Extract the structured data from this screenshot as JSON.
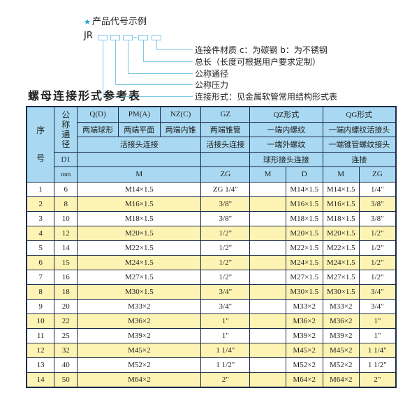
{
  "legend": {
    "title": "产品代号示例",
    "star_icon": "star-icon",
    "code_prefix": "JR",
    "items": [
      "连接件材质    c：为碳钢   b：为不锈钢",
      "总长（长度可根据用户要求定制）",
      "公称通径",
      "公称压力",
      "连接形式：见金属软管常用结构形式表"
    ]
  },
  "table_title": "螺母连接形式参考表",
  "colors": {
    "header_bg": "#a9d9f2",
    "stripe_bg": "#fdf4b4",
    "border": "#1a2a4a",
    "accent": "#1aa0d8"
  },
  "header": {
    "seq": "序号",
    "nominal": "公称通径",
    "d1": "D1",
    "mm": "mm",
    "q": "Q(D)",
    "pm": "PM(A)",
    "nz": "NZ(C)",
    "gz": "GZ",
    "qz": "QZ形式",
    "qg": "QG形式",
    "q_desc": "两端球形",
    "pm_desc": "两端平面",
    "nz_desc": "两端内锥",
    "gz_desc": "两端锥管",
    "qz_desc1": "一端内螺纹",
    "qg_desc1": "一端内螺纹活接头",
    "union": "活接头连接",
    "gz_union": "活接头连接",
    "qz_desc2": "一端外螺纹",
    "qg_desc2": "一端锥管螺纹接头",
    "qz_desc3": "球形接头连接",
    "qg_desc3": "连接",
    "m": "M",
    "zg": "ZG",
    "qz_m": "M",
    "qz_d": "D",
    "qg_m": "M",
    "qg_zg": "ZG"
  },
  "rows": [
    {
      "no": "1",
      "dn": "6",
      "m": "M14×1.5",
      "zg": "ZG 1/4\"",
      "qz_m": "",
      "qz_d": "M14×1.5",
      "qg_m": "M14×1.5",
      "qg_zg": "1/4\""
    },
    {
      "no": "2",
      "dn": "8",
      "m": "M16×1.5",
      "zg": "3/8\"",
      "qz_m": "",
      "qz_d": "M16×1.5",
      "qg_m": "M16×1.5",
      "qg_zg": "3/8\""
    },
    {
      "no": "3",
      "dn": "10",
      "m": "M18×1.5",
      "zg": "3/8\"",
      "qz_m": "",
      "qz_d": "M18×1.5",
      "qg_m": "M18×1.5",
      "qg_zg": "3/8\""
    },
    {
      "no": "4",
      "dn": "12",
      "m": "M20×1.5",
      "zg": "1/2\"",
      "qz_m": "",
      "qz_d": "M20×1.5",
      "qg_m": "M20×1.5",
      "qg_zg": "1/2\""
    },
    {
      "no": "5",
      "dn": "14",
      "m": "M22×1.5",
      "zg": "1/2\"",
      "qz_m": "",
      "qz_d": "M22×1.5",
      "qg_m": "M22×1.5",
      "qg_zg": "1/2\""
    },
    {
      "no": "6",
      "dn": "15",
      "m": "M24×1.5",
      "zg": "1/2\"",
      "qz_m": "",
      "qz_d": "M24×1.5",
      "qg_m": "M24×1.5",
      "qg_zg": "1/2\""
    },
    {
      "no": "7",
      "dn": "16",
      "m": "M27×1.5",
      "zg": "1/2\"",
      "qz_m": "",
      "qz_d": "M27×1.5",
      "qg_m": "M27×1.5",
      "qg_zg": "1/2\""
    },
    {
      "no": "8",
      "dn": "18",
      "m": "M30×1.5",
      "zg": "3/4\"",
      "qz_m": "",
      "qz_d": "M30×1.5",
      "qg_m": "M30×1.5",
      "qg_zg": "3/4\""
    },
    {
      "no": "9",
      "dn": "20",
      "m": "M33×2",
      "zg": "3/4\"",
      "qz_m": "",
      "qz_d": "M33×2",
      "qg_m": "M33×2",
      "qg_zg": "3/4\""
    },
    {
      "no": "10",
      "dn": "22",
      "m": "M36×2",
      "zg": "1\"",
      "qz_m": "",
      "qz_d": "M36×2",
      "qg_m": "M36×2",
      "qg_zg": "1\""
    },
    {
      "no": "11",
      "dn": "25",
      "m": "M39×2",
      "zg": "1\"",
      "qz_m": "",
      "qz_d": "M39×2",
      "qg_m": "M39×2",
      "qg_zg": "1\""
    },
    {
      "no": "12",
      "dn": "32",
      "m": "M45×2",
      "zg": "1 1/4\"",
      "qz_m": "",
      "qz_d": "M45×2",
      "qg_m": "M45×2",
      "qg_zg": "1 1/4\""
    },
    {
      "no": "13",
      "dn": "40",
      "m": "M52×2",
      "zg": "1 1/2\"",
      "qz_m": "",
      "qz_d": "M52×2",
      "qg_m": "M52×2",
      "qg_zg": "1 1/2\""
    },
    {
      "no": "14",
      "dn": "50",
      "m": "M64×2",
      "zg": "2\"",
      "qz_m": "",
      "qz_d": "M64×2",
      "qg_m": "M64×2",
      "qg_zg": "2\""
    }
  ]
}
